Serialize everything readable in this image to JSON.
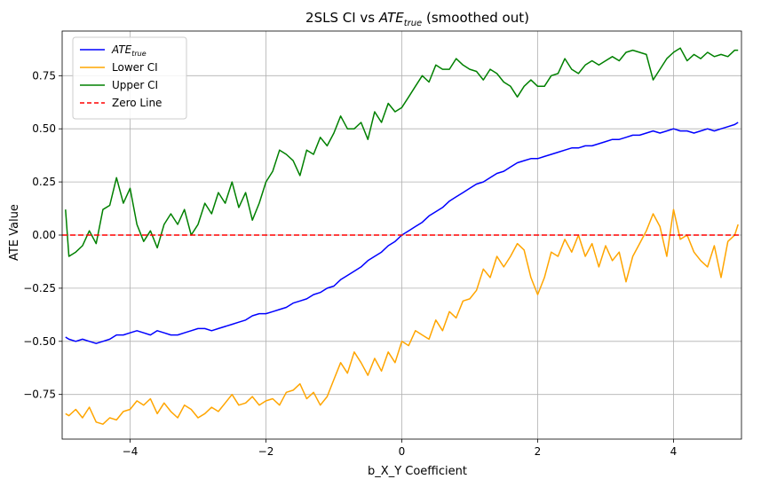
{
  "chart_data": {
    "type": "line",
    "title": {
      "prefix": "2SLS CI vs ",
      "math_base": "ATE",
      "math_sub": "true",
      "suffix": " (smoothed out)"
    },
    "xlabel": "b_X_Y Coefficient",
    "ylabel": "ATE Value",
    "xlim": [
      -5.0,
      5.0
    ],
    "ylim": [
      -0.96,
      0.96
    ],
    "x_ticks": [
      -4,
      -2,
      0,
      2,
      4
    ],
    "x_tick_labels": [
      "−4",
      "−2",
      "0",
      "2",
      "4"
    ],
    "y_ticks": [
      -0.75,
      -0.5,
      -0.25,
      0.0,
      0.25,
      0.5,
      0.75
    ],
    "y_tick_labels": [
      "−0.75",
      "−0.50",
      "−0.25",
      "0.00",
      "0.25",
      "0.50",
      "0.75"
    ],
    "grid": true,
    "legend_position": "top-left",
    "series": [
      {
        "name": "ATE_true",
        "label_base": "ATE",
        "label_sub": "true",
        "color": "#0000ff",
        "style": "solid",
        "x": [
          -4.95,
          -4.9,
          -4.8,
          -4.7,
          -4.6,
          -4.5,
          -4.4,
          -4.3,
          -4.2,
          -4.1,
          -4.0,
          -3.9,
          -3.8,
          -3.7,
          -3.6,
          -3.5,
          -3.4,
          -3.3,
          -3.2,
          -3.1,
          -3.0,
          -2.9,
          -2.8,
          -2.7,
          -2.6,
          -2.5,
          -2.4,
          -2.3,
          -2.2,
          -2.1,
          -2.0,
          -1.9,
          -1.8,
          -1.7,
          -1.6,
          -1.5,
          -1.4,
          -1.3,
          -1.2,
          -1.1,
          -1.0,
          -0.9,
          -0.8,
          -0.7,
          -0.6,
          -0.5,
          -0.4,
          -0.3,
          -0.2,
          -0.1,
          0.0,
          0.1,
          0.2,
          0.3,
          0.4,
          0.5,
          0.6,
          0.7,
          0.8,
          0.9,
          1.0,
          1.1,
          1.2,
          1.3,
          1.4,
          1.5,
          1.6,
          1.7,
          1.8,
          1.9,
          2.0,
          2.1,
          2.2,
          2.3,
          2.4,
          2.5,
          2.6,
          2.7,
          2.8,
          2.9,
          3.0,
          3.1,
          3.2,
          3.3,
          3.4,
          3.5,
          3.6,
          3.7,
          3.8,
          3.9,
          4.0,
          4.1,
          4.2,
          4.3,
          4.4,
          4.5,
          4.6,
          4.7,
          4.8,
          4.9,
          4.95
        ],
        "y": [
          -0.48,
          -0.49,
          -0.5,
          -0.49,
          -0.5,
          -0.51,
          -0.5,
          -0.49,
          -0.47,
          -0.47,
          -0.46,
          -0.45,
          -0.46,
          -0.47,
          -0.45,
          -0.46,
          -0.47,
          -0.47,
          -0.46,
          -0.45,
          -0.44,
          -0.44,
          -0.45,
          -0.44,
          -0.43,
          -0.42,
          -0.41,
          -0.4,
          -0.38,
          -0.37,
          -0.37,
          -0.36,
          -0.35,
          -0.34,
          -0.32,
          -0.31,
          -0.3,
          -0.28,
          -0.27,
          -0.25,
          -0.24,
          -0.21,
          -0.19,
          -0.17,
          -0.15,
          -0.12,
          -0.1,
          -0.08,
          -0.05,
          -0.03,
          0.0,
          0.02,
          0.04,
          0.06,
          0.09,
          0.11,
          0.13,
          0.16,
          0.18,
          0.2,
          0.22,
          0.24,
          0.25,
          0.27,
          0.29,
          0.3,
          0.32,
          0.34,
          0.35,
          0.36,
          0.36,
          0.37,
          0.38,
          0.39,
          0.4,
          0.41,
          0.41,
          0.42,
          0.42,
          0.43,
          0.44,
          0.45,
          0.45,
          0.46,
          0.47,
          0.47,
          0.48,
          0.49,
          0.48,
          0.49,
          0.5,
          0.49,
          0.49,
          0.48,
          0.49,
          0.5,
          0.49,
          0.5,
          0.51,
          0.52,
          0.53
        ]
      },
      {
        "name": "Lower CI",
        "label_base": "Lower CI",
        "label_sub": "",
        "color": "#ffa500",
        "style": "solid",
        "x": [
          -4.95,
          -4.9,
          -4.8,
          -4.7,
          -4.6,
          -4.5,
          -4.4,
          -4.3,
          -4.2,
          -4.1,
          -4.0,
          -3.9,
          -3.8,
          -3.7,
          -3.6,
          -3.5,
          -3.4,
          -3.3,
          -3.2,
          -3.1,
          -3.0,
          -2.9,
          -2.8,
          -2.7,
          -2.6,
          -2.5,
          -2.4,
          -2.3,
          -2.2,
          -2.1,
          -2.0,
          -1.9,
          -1.8,
          -1.7,
          -1.6,
          -1.5,
          -1.4,
          -1.3,
          -1.2,
          -1.1,
          -1.0,
          -0.9,
          -0.8,
          -0.7,
          -0.6,
          -0.5,
          -0.4,
          -0.3,
          -0.2,
          -0.1,
          0.0,
          0.1,
          0.2,
          0.3,
          0.4,
          0.5,
          0.6,
          0.7,
          0.8,
          0.9,
          1.0,
          1.1,
          1.2,
          1.3,
          1.4,
          1.5,
          1.6,
          1.7,
          1.8,
          1.9,
          2.0,
          2.1,
          2.2,
          2.3,
          2.4,
          2.5,
          2.6,
          2.7,
          2.8,
          2.9,
          3.0,
          3.1,
          3.2,
          3.3,
          3.4,
          3.5,
          3.6,
          3.7,
          3.8,
          3.9,
          4.0,
          4.1,
          4.2,
          4.3,
          4.4,
          4.5,
          4.6,
          4.7,
          4.8,
          4.9,
          4.95
        ],
        "y": [
          -0.84,
          -0.85,
          -0.82,
          -0.86,
          -0.81,
          -0.88,
          -0.89,
          -0.86,
          -0.87,
          -0.83,
          -0.82,
          -0.78,
          -0.8,
          -0.77,
          -0.84,
          -0.79,
          -0.83,
          -0.86,
          -0.8,
          -0.82,
          -0.86,
          -0.84,
          -0.81,
          -0.83,
          -0.79,
          -0.75,
          -0.8,
          -0.79,
          -0.76,
          -0.8,
          -0.78,
          -0.77,
          -0.8,
          -0.74,
          -0.73,
          -0.7,
          -0.77,
          -0.74,
          -0.8,
          -0.76,
          -0.68,
          -0.6,
          -0.65,
          -0.55,
          -0.6,
          -0.66,
          -0.58,
          -0.64,
          -0.55,
          -0.6,
          -0.5,
          -0.52,
          -0.45,
          -0.47,
          -0.49,
          -0.4,
          -0.45,
          -0.36,
          -0.39,
          -0.31,
          -0.3,
          -0.26,
          -0.16,
          -0.2,
          -0.1,
          -0.15,
          -0.1,
          -0.04,
          -0.07,
          -0.2,
          -0.28,
          -0.2,
          -0.08,
          -0.1,
          -0.02,
          -0.08,
          0.0,
          -0.1,
          -0.04,
          -0.15,
          -0.05,
          -0.12,
          -0.08,
          -0.22,
          -0.1,
          -0.04,
          0.02,
          0.1,
          0.04,
          -0.1,
          0.12,
          -0.02,
          0.0,
          -0.08,
          -0.12,
          -0.15,
          -0.05,
          -0.2,
          -0.03,
          0.0,
          0.05
        ]
      },
      {
        "name": "Upper CI",
        "label_base": "Upper CI",
        "label_sub": "",
        "color": "#008000",
        "style": "solid",
        "x": [
          -4.95,
          -4.9,
          -4.8,
          -4.7,
          -4.6,
          -4.5,
          -4.4,
          -4.3,
          -4.2,
          -4.1,
          -4.0,
          -3.9,
          -3.8,
          -3.7,
          -3.6,
          -3.5,
          -3.4,
          -3.3,
          -3.2,
          -3.1,
          -3.0,
          -2.9,
          -2.8,
          -2.7,
          -2.6,
          -2.5,
          -2.4,
          -2.3,
          -2.2,
          -2.1,
          -2.0,
          -1.9,
          -1.8,
          -1.7,
          -1.6,
          -1.5,
          -1.4,
          -1.3,
          -1.2,
          -1.1,
          -1.0,
          -0.9,
          -0.8,
          -0.7,
          -0.6,
          -0.5,
          -0.4,
          -0.3,
          -0.2,
          -0.1,
          0.0,
          0.1,
          0.2,
          0.3,
          0.4,
          0.5,
          0.6,
          0.7,
          0.8,
          0.9,
          1.0,
          1.1,
          1.2,
          1.3,
          1.4,
          1.5,
          1.6,
          1.7,
          1.8,
          1.9,
          2.0,
          2.1,
          2.2,
          2.3,
          2.4,
          2.5,
          2.6,
          2.7,
          2.8,
          2.9,
          3.0,
          3.1,
          3.2,
          3.3,
          3.4,
          3.5,
          3.6,
          3.7,
          3.8,
          3.9,
          4.0,
          4.1,
          4.2,
          4.3,
          4.4,
          4.5,
          4.6,
          4.7,
          4.8,
          4.9,
          4.95
        ],
        "y": [
          0.12,
          -0.1,
          -0.08,
          -0.05,
          0.02,
          -0.04,
          0.12,
          0.14,
          0.27,
          0.15,
          0.22,
          0.05,
          -0.03,
          0.02,
          -0.06,
          0.05,
          0.1,
          0.05,
          0.12,
          0.0,
          0.05,
          0.15,
          0.1,
          0.2,
          0.15,
          0.25,
          0.13,
          0.2,
          0.07,
          0.15,
          0.25,
          0.3,
          0.4,
          0.38,
          0.35,
          0.28,
          0.4,
          0.38,
          0.46,
          0.42,
          0.48,
          0.56,
          0.5,
          0.5,
          0.53,
          0.45,
          0.58,
          0.53,
          0.62,
          0.58,
          0.6,
          0.65,
          0.7,
          0.75,
          0.72,
          0.8,
          0.78,
          0.78,
          0.83,
          0.8,
          0.78,
          0.77,
          0.73,
          0.78,
          0.76,
          0.72,
          0.7,
          0.65,
          0.7,
          0.73,
          0.7,
          0.7,
          0.75,
          0.76,
          0.83,
          0.78,
          0.76,
          0.8,
          0.82,
          0.8,
          0.82,
          0.84,
          0.82,
          0.86,
          0.87,
          0.86,
          0.85,
          0.73,
          0.78,
          0.83,
          0.86,
          0.88,
          0.82,
          0.85,
          0.83,
          0.86,
          0.84,
          0.85,
          0.84,
          0.87,
          0.87
        ]
      },
      {
        "name": "Zero Line",
        "label_base": "Zero Line",
        "label_sub": "",
        "color": "#ff0000",
        "style": "dashed",
        "x": [
          -5.0,
          5.0
        ],
        "y": [
          0.0,
          0.0
        ]
      }
    ]
  }
}
